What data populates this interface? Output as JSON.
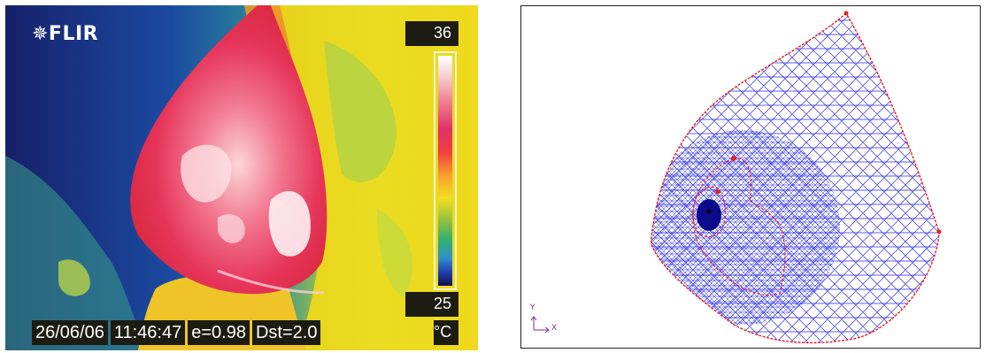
{
  "thermal_image": {
    "logo": "✵FLIR",
    "scale_max": "36",
    "scale_min": "25",
    "unit": "°C",
    "date": "26/06/06",
    "time": "11:46:47",
    "emissivity": "e=0.98",
    "distance": "Dst=2.0",
    "palette": [
      "#ffffff",
      "#f08090",
      "#e0306a",
      "#f8a030",
      "#f0e020",
      "#30b070",
      "#2040b0",
      "#101050"
    ]
  },
  "mesh_plot": {
    "axis_y_label": "Y",
    "axis_x_label": "X",
    "mesh_color": "#2a2ae6",
    "boundary_color": "#e81e1e",
    "tumor_color": "#0a0a8a"
  }
}
